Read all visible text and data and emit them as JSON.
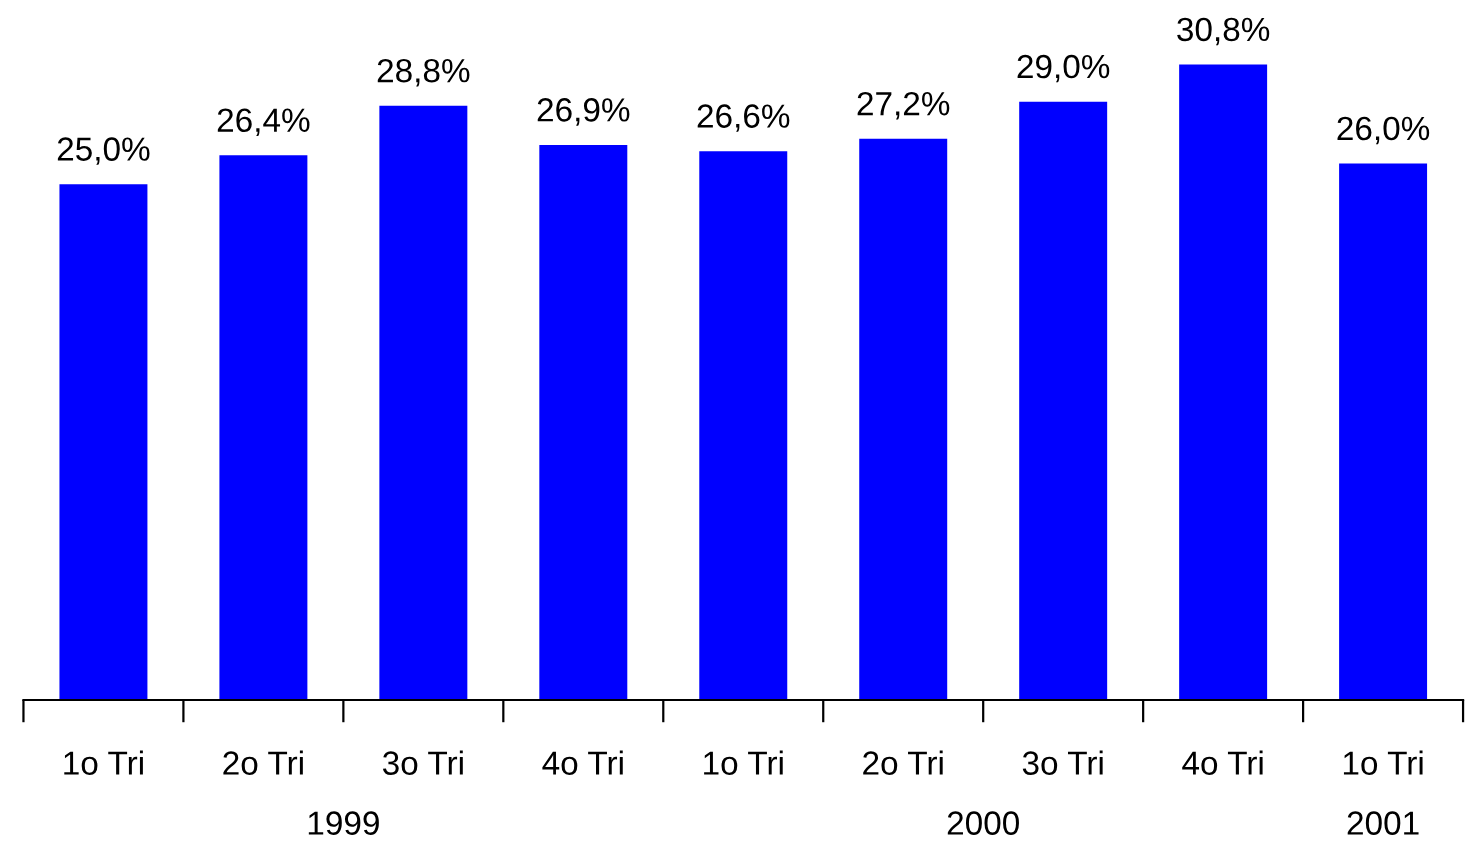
{
  "chart_data": {
    "type": "bar",
    "categories": [
      "1o Tri",
      "2o Tri",
      "3o Tri",
      "4o Tri",
      "1o Tri",
      "2o Tri",
      "3o Tri",
      "4o Tri",
      "1o Tri"
    ],
    "values": [
      25.0,
      26.4,
      28.8,
      26.9,
      26.6,
      27.2,
      29.0,
      30.8,
      26.0
    ],
    "value_labels": [
      "25,0%",
      "26,4%",
      "28,8%",
      "26,9%",
      "26,6%",
      "27,2%",
      "29,0%",
      "30,8%",
      "26,0%"
    ],
    "color": "#0000ff",
    "tick_labels": "x",
    "grid": false,
    "legend": false,
    "annotations": [
      "1999",
      "2000",
      "2001"
    ]
  }
}
